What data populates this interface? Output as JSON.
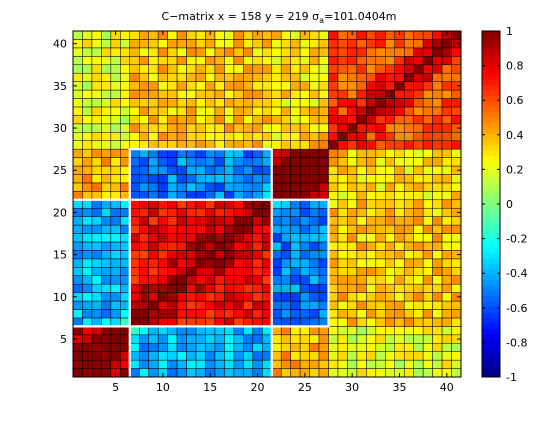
{
  "chart_data": {
    "type": "heatmap",
    "title": {
      "prefix": "C−matrix  x = 158  y = 219   σ",
      "subscript": "a",
      "suffix": "=101.0404m"
    },
    "xlabel": "",
    "ylabel": "",
    "grid": {
      "rows": 41,
      "cols": 41,
      "cell_lines": true
    },
    "x_range": [
      1,
      41
    ],
    "y_range": [
      1,
      41
    ],
    "x_ticks": [
      5,
      10,
      15,
      20,
      25,
      30,
      35,
      40
    ],
    "y_ticks": [
      5,
      10,
      15,
      20,
      25,
      30,
      35,
      40
    ],
    "colorbar": {
      "colormap": "jet",
      "range": [
        -1,
        1
      ],
      "ticks": [
        "1",
        "0.8",
        "0.6",
        "0.4",
        "0.2",
        "0",
        "-0.2",
        "-0.4",
        "-0.6",
        "-0.8",
        "-1"
      ]
    },
    "diagonal_value": 1.0,
    "blocks": [
      {
        "cells": "1-6",
        "within": 0.9
      },
      {
        "cells": "7-21",
        "within": 0.75
      },
      {
        "cells": "22-27",
        "within": 0.9
      },
      {
        "cells": "28-40",
        "within": 0.6
      }
    ],
    "zero_contour_color": "#ffffff"
  }
}
